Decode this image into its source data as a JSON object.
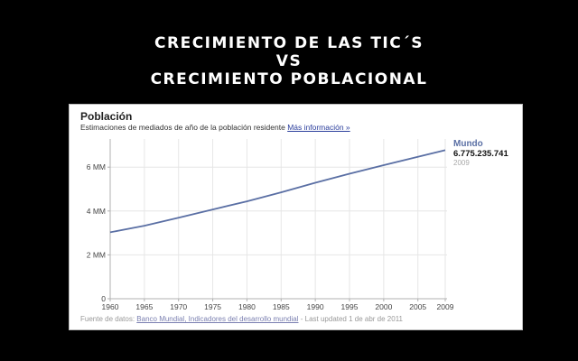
{
  "slide": {
    "title_lines": [
      "CRECIMIENTO DE LAS TIC´S",
      "VS",
      "CRECIMIENTO POBLACIONAL"
    ]
  },
  "panel": {
    "title": "Población",
    "subtitle": "Estimaciones de mediados de año de la población residente",
    "more_info_link": "Más información »",
    "legend": {
      "name": "Mundo",
      "value": "6.775.235.741",
      "year": "2009"
    },
    "source_label": "Fuente de datos:",
    "source_link": "Banco Mundial, Indicadores del desarrollo mundial",
    "last_updated": "- Last updated 1 de abr de 2011"
  },
  "colors": {
    "line": "#5a6fa4",
    "grid": "#e6e6e6",
    "axis": "#b0b0b0"
  },
  "chart_data": {
    "type": "line",
    "title": "Población",
    "subtitle": "Estimaciones de mediados de año de la población residente",
    "xlabel": "",
    "ylabel": "",
    "x": [
      1960,
      1965,
      1970,
      1975,
      1980,
      1985,
      1990,
      1995,
      2000,
      2005,
      2009
    ],
    "series": [
      {
        "name": "Mundo",
        "values": [
          3.03,
          3.33,
          3.69,
          4.07,
          4.44,
          4.85,
          5.29,
          5.7,
          6.09,
          6.47,
          6.775
        ]
      }
    ],
    "units": "miles de millones (MM)",
    "x_ticks": [
      "1960",
      "1965",
      "1970",
      "1975",
      "1980",
      "1985",
      "1990",
      "1995",
      "2000",
      "2005",
      "2009"
    ],
    "y_ticks": [
      "0",
      "2 MM",
      "4 MM",
      "6 MM"
    ],
    "y_tick_values": [
      0,
      2,
      4,
      6
    ],
    "xlim": [
      1960,
      2009
    ],
    "ylim": [
      0,
      7.2
    ],
    "grid": true,
    "legend_position": "right",
    "annotation": "Mundo 6.775.235.741 2009"
  }
}
